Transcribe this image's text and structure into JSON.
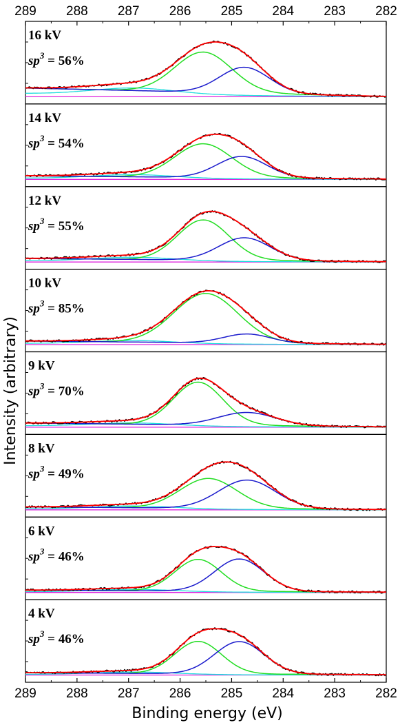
{
  "chart_data": {
    "type": "line",
    "title": "",
    "xlabel": "Binding energy (eV)",
    "ylabel": "Intensity (arbitrary)",
    "xlim": [
      289,
      282
    ],
    "x_reversed": true,
    "x_ticks": [
      "289",
      "288",
      "287",
      "286",
      "285",
      "284",
      "283",
      "282"
    ],
    "y_ticks_visible": false,
    "grid": false,
    "colors": {
      "raw": "#000000",
      "envelope": "#ff0000",
      "sp3": "#22dd22",
      "sp2": "#1a1acc",
      "co_component": "#22dddd",
      "background": "#dd22dd"
    },
    "panels": [
      {
        "label": "16 kV",
        "sp3_label": "sp",
        "sp3_sup": "3",
        "sp3_value": " = 56%",
        "sp3_center": 285.55,
        "sp3_height": 0.62,
        "sp3_sigma": 0.55,
        "sp2_center": 284.75,
        "sp2_height": 0.4,
        "sp2_sigma": 0.48,
        "co_center": 286.9,
        "co_height": 0.1,
        "co_sigma": 0.8,
        "baseline_start": 0.14,
        "baseline_end": 0.01
      },
      {
        "label": "14 kV",
        "sp3_label": "sp",
        "sp3_sup": "3",
        "sp3_value": " = 54%",
        "sp3_center": 285.55,
        "sp3_height": 0.52,
        "sp3_sigma": 0.55,
        "sp2_center": 284.8,
        "sp2_height": 0.33,
        "sp2_sigma": 0.48,
        "co_center": 286.9,
        "co_height": 0.06,
        "co_sigma": 0.8,
        "baseline_start": 0.06,
        "baseline_end": 0.01
      },
      {
        "label": "12 kV",
        "sp3_label": "sp",
        "sp3_sup": "3",
        "sp3_value": " = 55%",
        "sp3_center": 285.55,
        "sp3_height": 0.62,
        "sp3_sigma": 0.5,
        "sp2_center": 284.75,
        "sp2_height": 0.35,
        "sp2_sigma": 0.5,
        "co_center": 286.9,
        "co_height": 0.06,
        "co_sigma": 0.8,
        "baseline_start": 0.06,
        "baseline_end": 0.01
      },
      {
        "label": "10 kV",
        "sp3_label": "sp",
        "sp3_sup": "3",
        "sp3_value": " = 85%",
        "sp3_center": 285.5,
        "sp3_height": 0.76,
        "sp3_sigma": 0.62,
        "sp2_center": 284.7,
        "sp2_height": 0.14,
        "sp2_sigma": 0.45,
        "co_center": 286.9,
        "co_height": 0.05,
        "co_sigma": 0.8,
        "baseline_start": 0.06,
        "baseline_end": 0.01
      },
      {
        "label": "9 kV",
        "sp3_label": "sp",
        "sp3_sup": "3",
        "sp3_value": " = 70%",
        "sp3_center": 285.65,
        "sp3_height": 0.66,
        "sp3_sigma": 0.48,
        "sp2_center": 284.7,
        "sp2_height": 0.2,
        "sp2_sigma": 0.55,
        "co_center": 286.9,
        "co_height": 0.05,
        "co_sigma": 0.8,
        "baseline_start": 0.07,
        "baseline_end": 0.01
      },
      {
        "label": "8 kV",
        "sp3_label": "sp",
        "sp3_sup": "3",
        "sp3_value": " = 49%",
        "sp3_center": 285.45,
        "sp3_height": 0.46,
        "sp3_sigma": 0.55,
        "sp2_center": 284.7,
        "sp2_height": 0.44,
        "sp2_sigma": 0.55,
        "co_center": 286.9,
        "co_height": 0.05,
        "co_sigma": 0.8,
        "baseline_start": 0.05,
        "baseline_end": 0.01
      },
      {
        "label": "6 kV",
        "sp3_label": "sp",
        "sp3_sup": "3",
        "sp3_value": " = 46%",
        "sp3_center": 285.65,
        "sp3_height": 0.49,
        "sp3_sigma": 0.45,
        "sp2_center": 284.85,
        "sp2_height": 0.5,
        "sp2_sigma": 0.48,
        "co_center": 286.9,
        "co_height": 0.04,
        "co_sigma": 0.8,
        "baseline_start": 0.04,
        "baseline_end": 0.01
      },
      {
        "label": "4 kV",
        "sp3_label": "sp",
        "sp3_sup": "3",
        "sp3_value": " = 46%",
        "sp3_center": 285.65,
        "sp3_height": 0.5,
        "sp3_sigma": 0.45,
        "sp2_center": 284.85,
        "sp2_height": 0.5,
        "sp2_sigma": 0.48,
        "co_center": 286.9,
        "co_height": 0.04,
        "co_sigma": 0.8,
        "baseline_start": 0.04,
        "baseline_end": 0.01
      }
    ]
  }
}
